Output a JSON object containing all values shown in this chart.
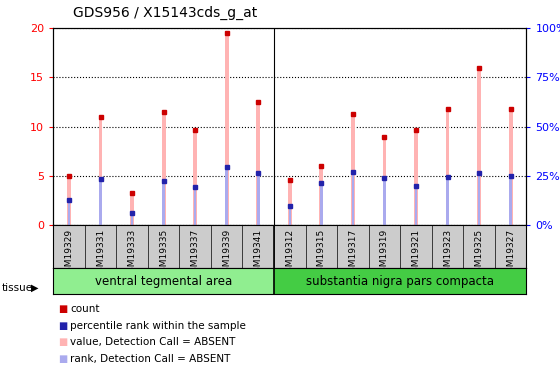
{
  "title": "GDS956 / X15143cds_g_at",
  "samples": [
    "GSM19329",
    "GSM19331",
    "GSM19333",
    "GSM19335",
    "GSM19337",
    "GSM19339",
    "GSM19341",
    "GSM19312",
    "GSM19315",
    "GSM19317",
    "GSM19319",
    "GSM19321",
    "GSM19323",
    "GSM19325",
    "GSM19327"
  ],
  "pink_values": [
    5.0,
    11.0,
    3.3,
    11.5,
    9.7,
    19.5,
    12.5,
    4.6,
    6.0,
    11.3,
    8.9,
    9.7,
    11.8,
    16.0,
    11.8
  ],
  "blue_values_pct": [
    12.5,
    23.5,
    6.0,
    22.5,
    19.5,
    29.5,
    26.5,
    9.5,
    21.5,
    27.0,
    24.0,
    20.0,
    24.5,
    26.5,
    25.0
  ],
  "group1_label": "ventral tegmental area",
  "group2_label": "substantia nigra pars compacta",
  "group1_count": 7,
  "group2_count": 8,
  "ylim_left": [
    0,
    20
  ],
  "ylim_right": [
    0,
    100
  ],
  "yticks_left": [
    0,
    5,
    10,
    15,
    20
  ],
  "yticks_right": [
    0,
    25,
    50,
    75,
    100
  ],
  "ytick_labels_left": [
    "0",
    "5",
    "10",
    "15",
    "20"
  ],
  "ytick_labels_right": [
    "0%",
    "25%",
    "50%",
    "75%",
    "100%"
  ],
  "pink_color": "#FFB3B3",
  "lightblue_color": "#AAAAEE",
  "red_color": "#CC0000",
  "blue_color": "#2222AA",
  "group_bg1": "#90EE90",
  "group_bg2": "#44CC44",
  "ticklabel_bg": "#CCCCCC",
  "plot_bg": "#FFFFFF"
}
